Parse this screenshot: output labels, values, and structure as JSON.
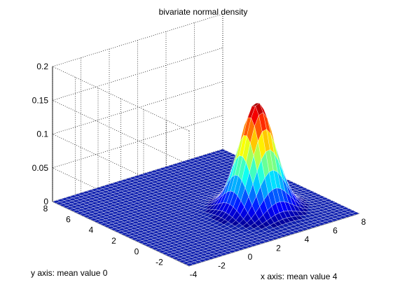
{
  "chart_data": {
    "type": "surface",
    "title": "bivariate normal density",
    "xlabel": "x axis: mean value 4",
    "ylabel": "y axis: mean value 0",
    "zlabel": "",
    "x_ticks": [
      "-4",
      "-2",
      "0",
      "2",
      "4",
      "6",
      "8"
    ],
    "y_ticks": [
      "-2",
      "0",
      "2",
      "4",
      "6",
      "8"
    ],
    "z_ticks": [
      "0",
      "0.05",
      "0.1",
      "0.15",
      "0.2"
    ],
    "xlim": [
      -4,
      8
    ],
    "ylim": [
      -4,
      8
    ],
    "zlim": [
      0,
      0.2
    ],
    "grid": true,
    "colormap": "jet",
    "surface": {
      "mean_x": 4,
      "mean_y": 0,
      "std_x": 1,
      "std_y": 1,
      "correlation": 0,
      "peak_value": 0.16,
      "x_range": [
        -4,
        8
      ],
      "y_range": [
        -4,
        8
      ],
      "grid_points": 41
    },
    "colors": {
      "floor": "#0e1fae",
      "edge": "#ffffff"
    }
  }
}
